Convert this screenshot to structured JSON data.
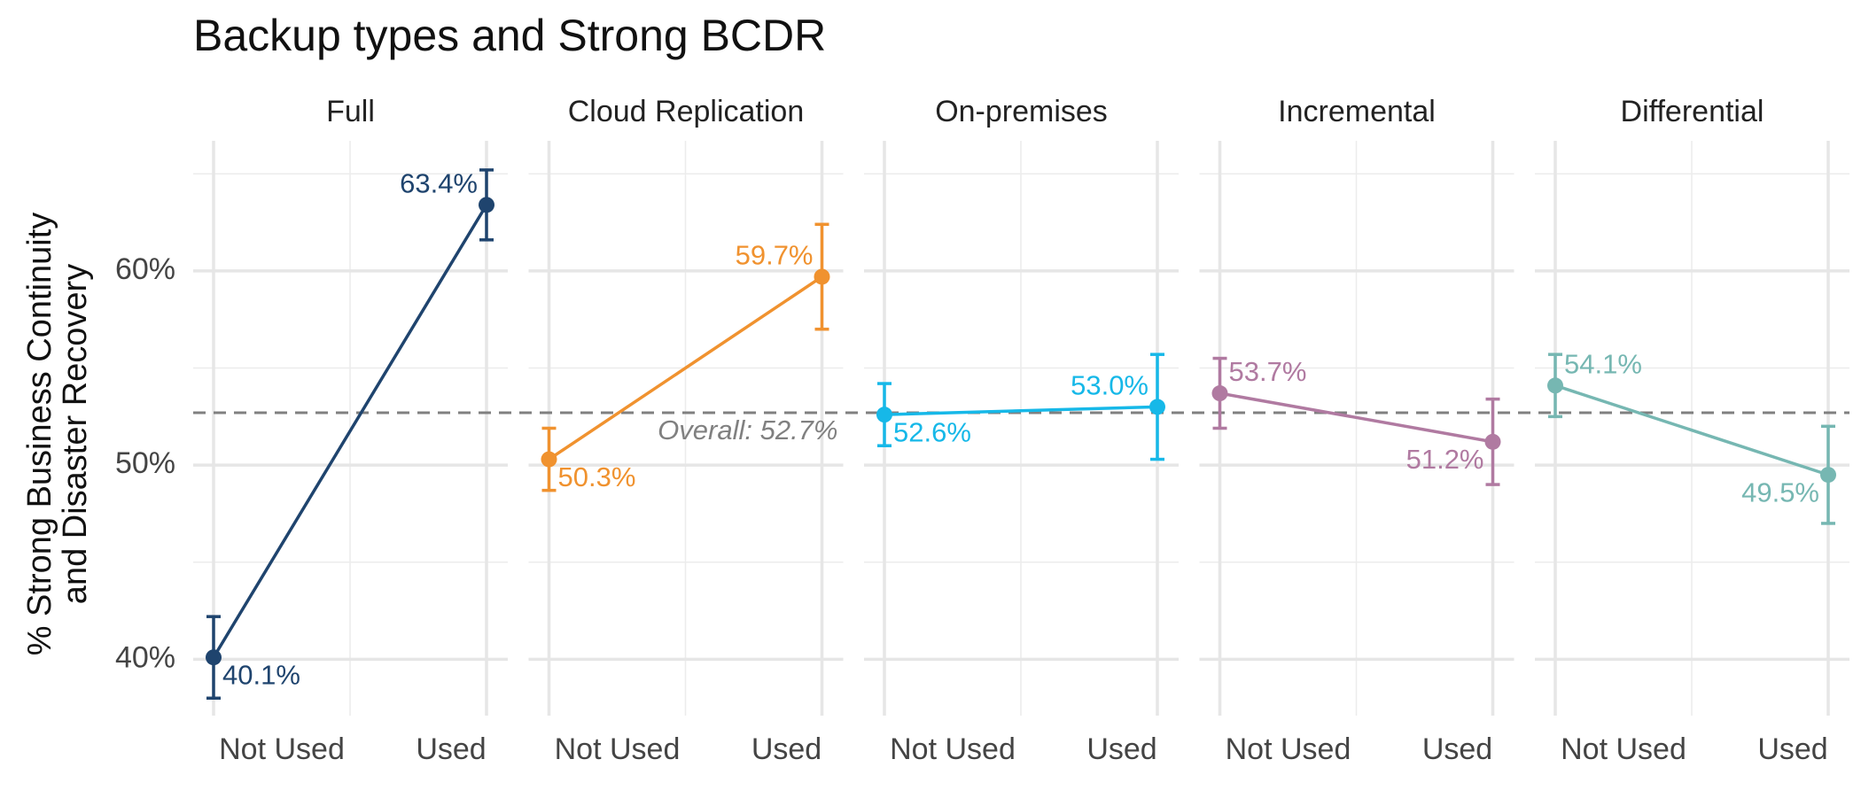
{
  "chart_data": {
    "type": "line",
    "title": "Backup types and Strong BCDR",
    "y_label": [
      "% Strong Business Continuity",
      "and Disaster Recovery"
    ],
    "categories": [
      "Not Used",
      "Used"
    ],
    "ylim": [
      37.1,
      66.7
    ],
    "yticks": [
      {
        "value": 40,
        "label": "40%"
      },
      {
        "value": 50,
        "label": "50%"
      },
      {
        "value": 60,
        "label": "60%"
      }
    ],
    "minor_yticks": [
      45,
      55,
      65
    ],
    "grid": true,
    "reference": {
      "value": 52.7,
      "label": "Overall: 52.7%"
    },
    "series": [
      {
        "name": "Full",
        "color": "#1f446e",
        "values": [
          40.1,
          63.4
        ],
        "errors": [
          2.1,
          1.8
        ],
        "value_labels": [
          "40.1%",
          "63.4%"
        ]
      },
      {
        "name": "Cloud Replication",
        "color": "#f0922f",
        "values": [
          50.3,
          59.7
        ],
        "errors": [
          1.6,
          2.7
        ],
        "value_labels": [
          "50.3%",
          "59.7%"
        ]
      },
      {
        "name": "On-premises",
        "color": "#16b8e8",
        "values": [
          52.6,
          53.0
        ],
        "errors": [
          1.6,
          2.7
        ],
        "value_labels": [
          "52.6%",
          "53.0%"
        ]
      },
      {
        "name": "Incremental",
        "color": "#b07aa1",
        "values": [
          53.7,
          51.2
        ],
        "errors": [
          1.8,
          2.2
        ],
        "value_labels": [
          "53.7%",
          "51.2%"
        ]
      },
      {
        "name": "Differential",
        "color": "#76b7b2",
        "values": [
          54.1,
          49.5
        ],
        "errors": [
          1.6,
          2.5
        ],
        "value_labels": [
          "54.1%",
          "49.5%"
        ]
      }
    ]
  }
}
